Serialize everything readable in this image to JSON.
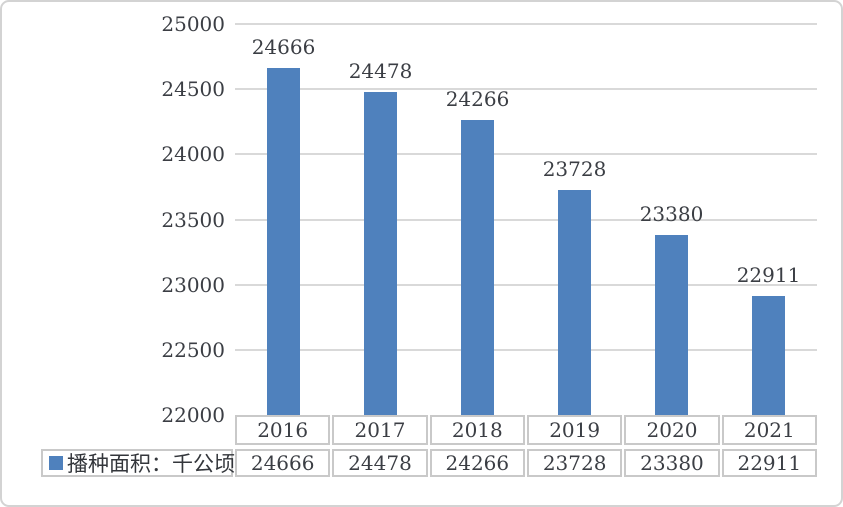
{
  "chart": {
    "title": "",
    "bar_color": "#4F81BD",
    "text_color": "#3B3E44",
    "gridline_color": "#D9D9D9",
    "table_border_color": "#C9C9C9",
    "outer_border_color": "#D3D3D3",
    "background_color": "#FFFFFF",
    "legend": {
      "swatch_icon": "square-swatch",
      "swatch_color": "#4F81BD",
      "label": "播种面积：千公顷"
    }
  },
  "chart_data": {
    "type": "bar",
    "title": "",
    "xlabel": "",
    "ylabel": "",
    "categories": [
      "2016",
      "2017",
      "2018",
      "2019",
      "2020",
      "2021"
    ],
    "series": [
      {
        "name": "播种面积：千公顷",
        "values": [
          24666,
          24478,
          24266,
          23728,
          23380,
          22911
        ]
      }
    ],
    "data_labels": [
      24666,
      24478,
      24266,
      23728,
      23380,
      22911
    ],
    "table_row_values": [
      "24666",
      "24478",
      "24266",
      "23728",
      "23380",
      "22911"
    ],
    "ylim": [
      22000,
      25000
    ],
    "ytick_interval": 500,
    "yticks": [
      25000,
      24500,
      24000,
      23500,
      23000,
      22500,
      22000
    ],
    "grid": true,
    "legend_position": "bottom-left-table"
  }
}
